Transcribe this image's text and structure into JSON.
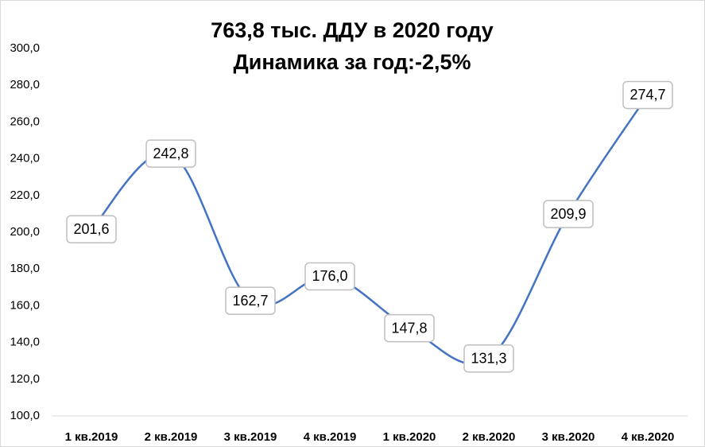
{
  "chart_data": {
    "type": "line",
    "title": "763,8 тыс. ДДУ в 2020 году",
    "subtitle": "Динамика за год:-2,5%",
    "categories": [
      "1 кв.2019",
      "2 кв.2019",
      "3 кв.2019",
      "4 кв.2019",
      "1 кв.2020",
      "2 кв.2020",
      "3 кв.2020",
      "4 кв.2020"
    ],
    "values": [
      201.6,
      242.8,
      162.7,
      176.0,
      147.8,
      131.3,
      209.9,
      274.7
    ],
    "value_labels": [
      "201,6",
      "242,8",
      "162,7",
      "176,0",
      "147,8",
      "131,3",
      "209,9",
      "274,7"
    ],
    "color": "#4472c4",
    "ylim": [
      100,
      300
    ],
    "yticks": [
      {
        "value": 100,
        "label": "100,0"
      },
      {
        "value": 120,
        "label": "120,0"
      },
      {
        "value": 140,
        "label": "140,0"
      },
      {
        "value": 160,
        "label": "160,0"
      },
      {
        "value": 180,
        "label": "180,0"
      },
      {
        "value": 200,
        "label": "200,0"
      },
      {
        "value": 220,
        "label": "220,0"
      },
      {
        "value": 240,
        "label": "240,0"
      },
      {
        "value": 260,
        "label": "260,0"
      },
      {
        "value": 280,
        "label": "280,0"
      },
      {
        "value": 300,
        "label": "300,0"
      }
    ],
    "grid": false
  }
}
